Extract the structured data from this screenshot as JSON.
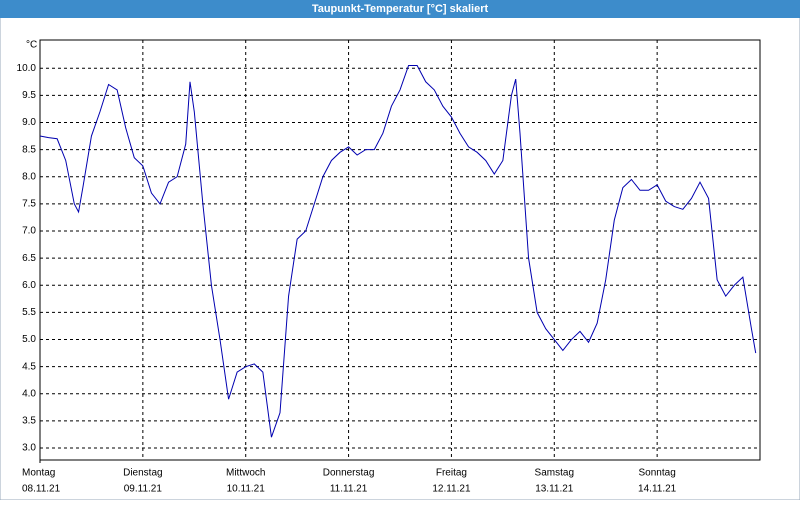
{
  "chart_data": {
    "type": "line",
    "title": "Taupunkt-Temperatur [°C] skaliert",
    "ylabel": "°C",
    "x": [
      0,
      2,
      4,
      6,
      8,
      9,
      10,
      12,
      14,
      16,
      18,
      20,
      22,
      24,
      26,
      28,
      30,
      32,
      34,
      35,
      36,
      38,
      40,
      42,
      44,
      46,
      48,
      50,
      52,
      54,
      56,
      58,
      60,
      62,
      64,
      66,
      68,
      70,
      72,
      74,
      76,
      78,
      80,
      82,
      84,
      86,
      88,
      90,
      92,
      94,
      96,
      98,
      100,
      102,
      104,
      106,
      108,
      110,
      111,
      112,
      114,
      116,
      118,
      120,
      122,
      124,
      126,
      128,
      130,
      132,
      134,
      136,
      138,
      140,
      142,
      144,
      146,
      148,
      150,
      152,
      154,
      156,
      158,
      160,
      162,
      164,
      166,
      167
    ],
    "series": [
      {
        "name": "Taupunkt",
        "color": "#0000b0",
        "values": [
          8.75,
          8.72,
          8.7,
          8.3,
          7.5,
          7.35,
          7.8,
          8.75,
          9.2,
          9.7,
          9.6,
          8.9,
          8.35,
          8.2,
          7.7,
          7.5,
          7.9,
          8.0,
          8.6,
          9.75,
          9.2,
          7.5,
          6.0,
          5.0,
          3.9,
          4.4,
          4.5,
          4.55,
          4.4,
          3.2,
          3.65,
          5.8,
          6.85,
          7.0,
          7.5,
          8.0,
          8.3,
          8.45,
          8.55,
          8.4,
          8.5,
          8.5,
          8.8,
          9.3,
          9.6,
          10.05,
          10.05,
          9.75,
          9.6,
          9.3,
          9.1,
          8.8,
          8.55,
          8.45,
          8.3,
          8.05,
          8.3,
          9.5,
          9.8,
          8.8,
          6.5,
          5.5,
          5.2,
          5.0,
          4.8,
          5.0,
          5.15,
          4.95,
          5.3,
          6.1,
          7.2,
          7.8,
          7.95,
          7.75,
          7.75,
          7.85,
          7.55,
          7.45,
          7.4,
          7.6,
          7.9,
          7.6,
          6.1,
          5.8,
          6.0,
          6.15,
          5.2,
          4.75
        ]
      }
    ],
    "xlim": [
      0,
      168
    ],
    "xticks": [
      {
        "value": 0,
        "label": "Montag"
      },
      {
        "value": 24,
        "label": "Dienstag"
      },
      {
        "value": 48,
        "label": "Mittwoch"
      },
      {
        "value": 72,
        "label": "Donnerstag"
      },
      {
        "value": 96,
        "label": "Freitag"
      },
      {
        "value": 120,
        "label": "Samstag"
      },
      {
        "value": 144,
        "label": "Sonntag"
      }
    ],
    "xtick_dates": [
      "08.11.21",
      "09.11.21",
      "10.11.21",
      "11.11.21",
      "12.11.21",
      "13.11.21",
      "14.11.21"
    ],
    "ylim": [
      2.78,
      10.52
    ],
    "yticks": [
      {
        "value": 3,
        "label": "3.0"
      },
      3.5,
      {
        "value": 4,
        "label": "4.0"
      },
      4.5,
      {
        "value": 5,
        "label": "5.0"
      },
      5.5,
      {
        "value": 6,
        "label": "6.0"
      },
      6.5,
      {
        "value": 7,
        "label": "7.0"
      },
      7.5,
      {
        "value": 8,
        "label": "8.0"
      },
      8.5,
      {
        "value": 9,
        "label": "9.0"
      },
      9.5,
      {
        "value": 10,
        "label": "10.0"
      }
    ],
    "grid": true
  }
}
